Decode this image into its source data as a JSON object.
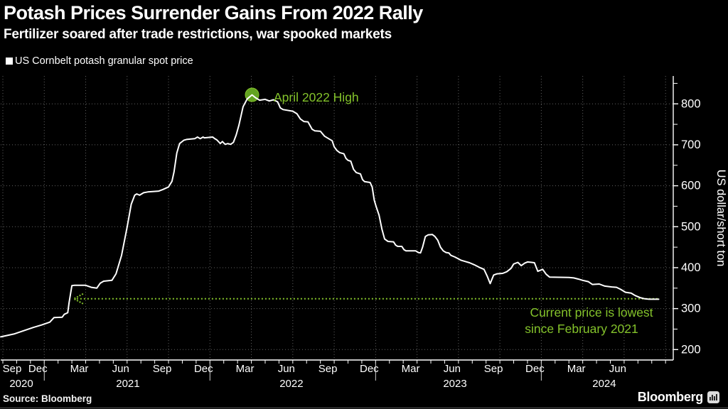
{
  "header": {
    "title": "Potash Prices Surrender Gains From 2022 Rally",
    "subtitle": "Fertilizer soared after trade restrictions, war spooked markets"
  },
  "legend": {
    "marker_color": "#ffffff",
    "label": "US Cornbelt potash granular spot price"
  },
  "footer": {
    "source": "Source: Bloomberg",
    "brand": "Bloomberg",
    "brand_icon": "bloomberg-bars-logo"
  },
  "colors": {
    "background": "#000000",
    "price_line": "#ffffff",
    "accent_green": "#84c32b",
    "peak_marker_fill": "#63a321",
    "grid": "rgba(255,255,255,0.38)",
    "axis": "#ffffff"
  },
  "chart_data": {
    "type": "line",
    "title": "Potash Prices Surrender Gains From 2022 Rally",
    "ylabel": "US dollar/short ton",
    "y_ticks": [
      200,
      300,
      400,
      500,
      600,
      700,
      800
    ],
    "y_minor_tick_step": 50,
    "y_minor_tick_max": 850,
    "grid": "dotted, quarterly vertical + every 100 horizontal",
    "legend_position": "top-left",
    "x_note": "x = months after Sep 2020 tick (0 = Sep 2020, 3 = Dec 2020, 18 = Mar 2022 ...)",
    "x_month_labels": [
      {
        "m": 0,
        "text": "Sep"
      },
      {
        "m": 3,
        "text": "Dec"
      },
      {
        "m": 6,
        "text": "Mar"
      },
      {
        "m": 9,
        "text": "Jun"
      },
      {
        "m": 12,
        "text": "Sep"
      },
      {
        "m": 15,
        "text": "Dec"
      },
      {
        "m": 18,
        "text": "Mar"
      },
      {
        "m": 21,
        "text": "Jun"
      },
      {
        "m": 24,
        "text": "Sep"
      },
      {
        "m": 27,
        "text": "Dec"
      },
      {
        "m": 30,
        "text": "Mar"
      },
      {
        "m": 33,
        "text": "Jun"
      },
      {
        "m": 36,
        "text": "Sep"
      },
      {
        "m": 39,
        "text": "Dec"
      },
      {
        "m": 42,
        "text": "Mar"
      },
      {
        "m": 45,
        "text": "Jun"
      }
    ],
    "x_year_labels": [
      {
        "m": 1.34,
        "text": "2020"
      },
      {
        "m": 9.06,
        "text": "2021"
      },
      {
        "m": 20.9,
        "text": "2022"
      },
      {
        "m": 32.75,
        "text": "2023"
      },
      {
        "m": 43.56,
        "text": "2024"
      }
    ],
    "x_year_separators_m": [
      3,
      15,
      27,
      39
    ],
    "series": [
      {
        "name": "US Cornbelt potash granular spot price",
        "color": "#ffffff",
        "points": [
          [
            -0.15,
            231
          ],
          [
            0.8,
            238
          ],
          [
            1.5,
            246
          ],
          [
            2.2,
            254
          ],
          [
            2.8,
            260
          ],
          [
            3.4,
            267
          ],
          [
            3.7,
            278
          ],
          [
            4.3,
            279
          ],
          [
            4.45,
            286
          ],
          [
            4.7,
            290
          ],
          [
            4.8,
            315
          ],
          [
            5.0,
            356
          ],
          [
            5.2,
            357
          ],
          [
            6.0,
            357
          ],
          [
            6.4,
            352
          ],
          [
            6.8,
            350
          ],
          [
            7.05,
            362
          ],
          [
            7.3,
            367
          ],
          [
            7.9,
            369
          ],
          [
            8.2,
            385
          ],
          [
            8.6,
            430
          ],
          [
            9.0,
            499
          ],
          [
            9.3,
            555
          ],
          [
            9.55,
            577
          ],
          [
            9.7,
            580
          ],
          [
            9.9,
            577
          ],
          [
            10.2,
            583
          ],
          [
            10.5,
            585
          ],
          [
            11.3,
            587
          ],
          [
            11.6,
            591
          ],
          [
            12.0,
            597
          ],
          [
            12.25,
            611
          ],
          [
            12.4,
            634
          ],
          [
            12.6,
            680
          ],
          [
            12.8,
            703
          ],
          [
            13.1,
            711
          ],
          [
            13.3,
            713
          ],
          [
            13.9,
            715
          ],
          [
            14.1,
            719
          ],
          [
            14.3,
            715
          ],
          [
            14.5,
            719
          ],
          [
            14.6,
            717
          ],
          [
            15.2,
            719
          ],
          [
            15.35,
            715
          ],
          [
            15.5,
            712
          ],
          [
            15.75,
            703
          ],
          [
            15.9,
            708
          ],
          [
            16.1,
            701
          ],
          [
            16.3,
            703
          ],
          [
            16.5,
            701
          ],
          [
            16.7,
            706
          ],
          [
            16.9,
            724
          ],
          [
            17.1,
            748
          ],
          [
            17.4,
            793
          ],
          [
            17.7,
            812
          ],
          [
            18.05,
            822
          ],
          [
            18.3,
            815
          ],
          [
            18.6,
            809
          ],
          [
            19.0,
            811
          ],
          [
            19.3,
            807
          ],
          [
            19.6,
            810
          ],
          [
            19.9,
            805
          ],
          [
            20.1,
            790
          ],
          [
            20.3,
            786
          ],
          [
            21.0,
            782
          ],
          [
            21.3,
            776
          ],
          [
            21.55,
            763
          ],
          [
            21.8,
            757
          ],
          [
            22.1,
            756
          ],
          [
            22.4,
            738
          ],
          [
            22.6,
            734
          ],
          [
            23.0,
            733
          ],
          [
            23.3,
            721
          ],
          [
            23.6,
            715
          ],
          [
            23.85,
            710
          ],
          [
            24.0,
            695
          ],
          [
            24.2,
            686
          ],
          [
            24.4,
            681
          ],
          [
            24.7,
            678
          ],
          [
            24.85,
            667
          ],
          [
            25.0,
            662
          ],
          [
            25.2,
            660
          ],
          [
            25.4,
            640
          ],
          [
            25.6,
            632
          ],
          [
            25.9,
            629
          ],
          [
            26.05,
            615
          ],
          [
            26.2,
            610
          ],
          [
            26.6,
            608
          ],
          [
            26.75,
            597
          ],
          [
            26.9,
            565
          ],
          [
            27.05,
            548
          ],
          [
            27.25,
            528
          ],
          [
            27.45,
            495
          ],
          [
            27.65,
            470
          ],
          [
            27.9,
            464
          ],
          [
            28.3,
            463
          ],
          [
            28.45,
            455
          ],
          [
            28.6,
            452
          ],
          [
            28.9,
            452
          ],
          [
            29.05,
            444
          ],
          [
            29.2,
            441
          ],
          [
            29.9,
            441
          ],
          [
            30.1,
            437
          ],
          [
            30.25,
            436
          ],
          [
            30.4,
            450
          ],
          [
            30.6,
            476
          ],
          [
            30.8,
            480
          ],
          [
            31.1,
            481
          ],
          [
            31.3,
            476
          ],
          [
            31.5,
            467
          ],
          [
            31.7,
            450
          ],
          [
            31.9,
            441
          ],
          [
            32.1,
            437
          ],
          [
            32.3,
            436
          ],
          [
            32.45,
            430
          ],
          [
            32.75,
            426
          ],
          [
            33.2,
            418
          ],
          [
            33.5,
            415
          ],
          [
            33.8,
            412
          ],
          [
            34.15,
            407
          ],
          [
            34.5,
            401
          ],
          [
            34.85,
            396
          ],
          [
            35.1,
            378
          ],
          [
            35.3,
            361
          ],
          [
            35.55,
            382
          ],
          [
            35.8,
            385
          ],
          [
            36.2,
            386
          ],
          [
            36.5,
            390
          ],
          [
            36.8,
            398
          ],
          [
            37.0,
            409
          ],
          [
            37.3,
            413
          ],
          [
            37.55,
            405
          ],
          [
            37.8,
            411
          ],
          [
            38.0,
            414
          ],
          [
            38.3,
            413
          ],
          [
            38.5,
            412
          ],
          [
            38.75,
            391
          ],
          [
            39.1,
            396
          ],
          [
            39.35,
            384
          ],
          [
            39.6,
            377
          ],
          [
            41.0,
            376
          ],
          [
            41.35,
            375
          ],
          [
            41.7,
            372
          ],
          [
            42.0,
            369
          ],
          [
            42.4,
            366
          ],
          [
            42.7,
            359
          ],
          [
            43.2,
            360
          ],
          [
            43.6,
            355
          ],
          [
            44.1,
            353
          ],
          [
            44.45,
            352
          ],
          [
            44.75,
            347
          ],
          [
            45.1,
            340
          ],
          [
            45.5,
            338
          ],
          [
            45.8,
            332
          ],
          [
            46.15,
            327
          ],
          [
            46.5,
            324
          ],
          [
            46.8,
            323
          ],
          [
            47.5,
            323
          ]
        ]
      }
    ],
    "annotations": {
      "peak": {
        "label": "April 2022 High",
        "m": 18.05,
        "value": 822,
        "marker": "filled-green-circle"
      },
      "current_price_line": {
        "label_lines": [
          "Current price is lowest",
          "since February 2021"
        ],
        "value": 324,
        "style": "green-dotted-horizontal",
        "start_m": 5.35,
        "end_m": 47.5,
        "arrow": "left-pointing-dotted-arrowhead"
      }
    },
    "key_points": [
      {
        "date": "Sep 2020",
        "value": 231
      },
      {
        "date": "Feb 2021",
        "value": 324
      },
      {
        "date": "Apr 2022 (peak)",
        "value": 822
      },
      {
        "date": "mid 2024 (current)",
        "value": 323
      }
    ]
  }
}
